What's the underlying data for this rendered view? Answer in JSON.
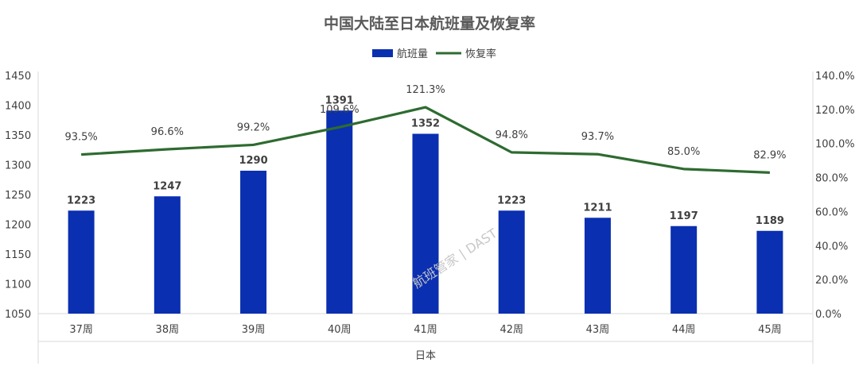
{
  "chart_data": {
    "type": "bar",
    "title": "中国大陆至日本航班量及恢复率",
    "xlabel": "日本",
    "categories": [
      "37周",
      "38周",
      "39周",
      "40周",
      "41周",
      "42周",
      "43周",
      "44周",
      "45周"
    ],
    "series": [
      {
        "name": "航班量",
        "type": "bar",
        "axis": "left",
        "color": "#0a2fb0",
        "values": [
          1223,
          1247,
          1290,
          1391,
          1352,
          1223,
          1211,
          1197,
          1189
        ],
        "labels": [
          "1223",
          "1247",
          "1290",
          "1391",
          "1352",
          "1223",
          "1211",
          "1197",
          "1189"
        ]
      },
      {
        "name": "恢复率",
        "type": "line",
        "axis": "right",
        "color": "#2e6b30",
        "values": [
          93.5,
          96.6,
          99.2,
          109.6,
          121.3,
          94.8,
          93.7,
          85.0,
          82.9
        ],
        "labels": [
          "93.5%",
          "96.6%",
          "99.2%",
          "109.6%",
          "121.3%",
          "94.8%",
          "93.7%",
          "85.0%",
          "82.9%"
        ]
      }
    ],
    "y_left": {
      "min": 1050,
      "max": 1450,
      "ticks": [
        "1450",
        "1400",
        "1350",
        "1300",
        "1250",
        "1200",
        "1150",
        "1100",
        "1050"
      ],
      "tick_values": [
        1450,
        1400,
        1350,
        1300,
        1250,
        1200,
        1150,
        1100,
        1050
      ]
    },
    "y_right": {
      "min": 0,
      "max": 140,
      "ticks": [
        "140.0%",
        "120.0%",
        "100.0%",
        "80.0%",
        "60.0%",
        "40.0%",
        "20.0%",
        "0.0%"
      ],
      "tick_values": [
        140,
        120,
        100,
        80,
        60,
        40,
        20,
        0
      ]
    },
    "legend_position": "top-center",
    "grid": false
  },
  "watermark": "航班管家 | DAST"
}
